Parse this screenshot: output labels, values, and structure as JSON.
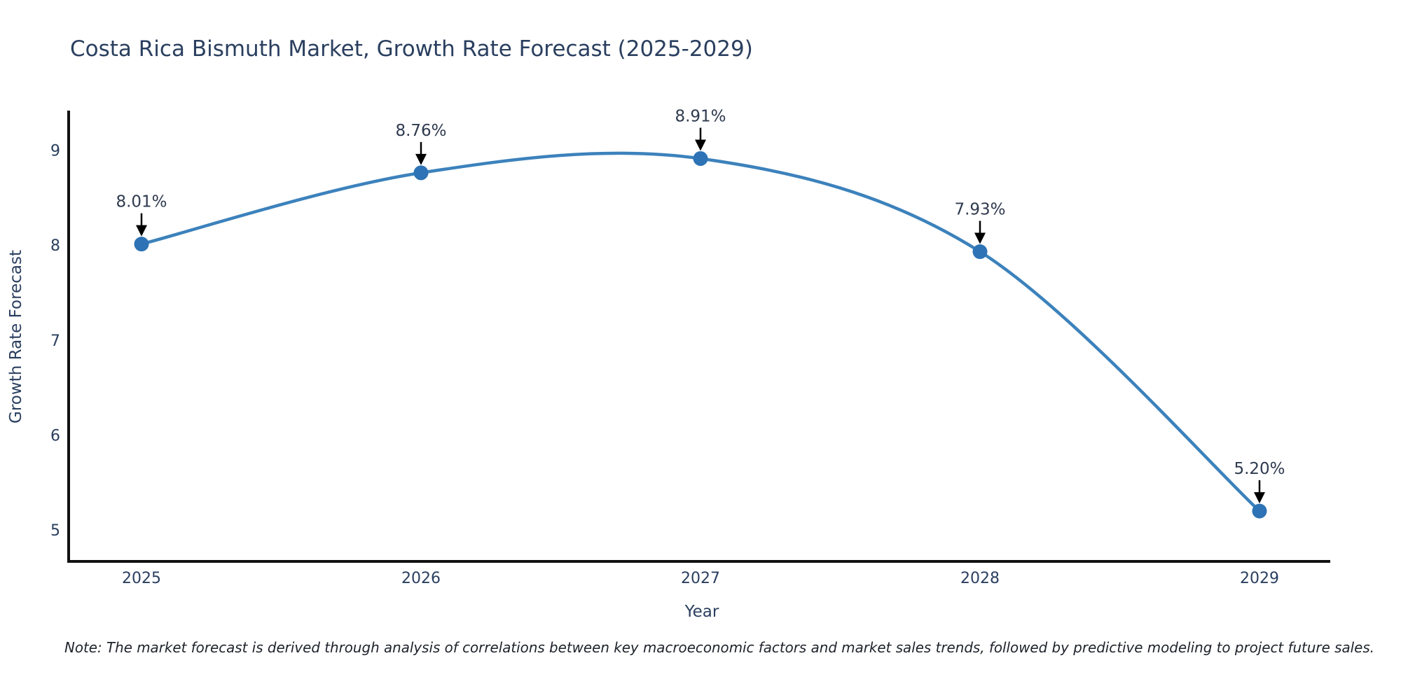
{
  "note": "Note: The market forecast is derived through analysis of correlations between key macroeconomic factors and market sales trends, followed by predictive modeling to project future sales.",
  "chart_data": {
    "type": "line",
    "title": "Costa Rica Bismuth Market, Growth Rate Forecast (2025-2029)",
    "xlabel": "Year",
    "ylabel": "Growth Rate Forecast",
    "x": [
      "2025",
      "2026",
      "2027",
      "2028",
      "2029"
    ],
    "values": [
      8.01,
      8.76,
      8.91,
      7.93,
      5.2
    ],
    "point_labels": [
      "8.01%",
      "8.76%",
      "8.91%",
      "7.93%",
      "5.20%"
    ],
    "yticks": [
      5,
      6,
      7,
      8,
      9
    ],
    "ylim": [
      4.67,
      9.4
    ],
    "line_shape": "spline",
    "grid": false,
    "legend": "none",
    "colors": {
      "line": "#3c82bc",
      "marker": "#2d73b5",
      "axis": "#111111",
      "tick_text": "#2a3f5f",
      "annotation_text": "#2f3a4f",
      "arrow": "#000000",
      "background": "#ffffff"
    }
  }
}
